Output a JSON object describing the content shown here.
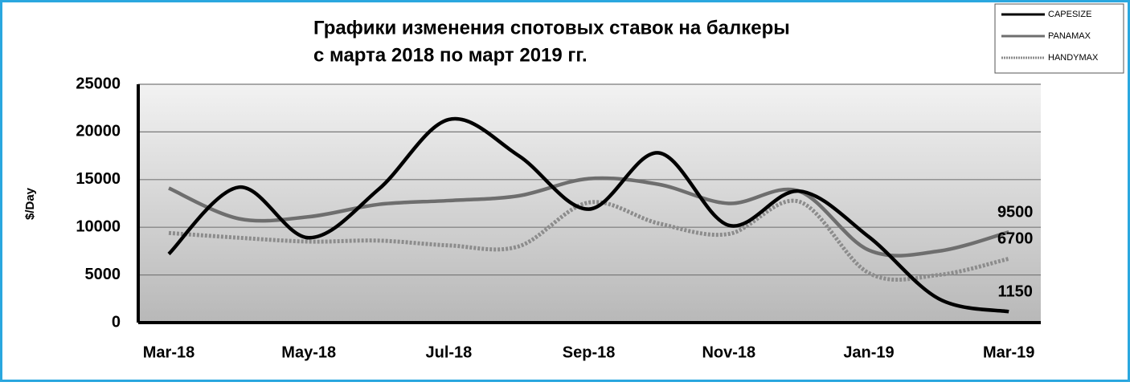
{
  "chart_data": {
    "type": "line",
    "title": [
      "Графики изменения спотовых ставок на балкеры",
      "с марта 2018 по март 2019 гг."
    ],
    "ylabel": "$/Day",
    "categories": [
      "Mar-18",
      null,
      "May-18",
      null,
      "Jul-18",
      null,
      "Sep-18",
      null,
      "Nov-18",
      null,
      "Jan-19",
      null,
      "Mar-19"
    ],
    "series": [
      {
        "name": "CAPESIZE",
        "color": "#000000",
        "values": [
          7200,
          14200,
          8900,
          14000,
          21300,
          17500,
          11900,
          17800,
          10200,
          13800,
          9000,
          2500,
          1150
        ]
      },
      {
        "name": "PANAMAX",
        "color": "#6e6e6e",
        "values": [
          14100,
          10900,
          11100,
          12400,
          12800,
          13300,
          15100,
          14500,
          12500,
          13800,
          7600,
          7500,
          9500
        ]
      },
      {
        "name": "HANDYMAX",
        "color": "#8c8c8c",
        "dashed": true,
        "values": [
          9400,
          8900,
          8500,
          8600,
          8100,
          8000,
          12600,
          10400,
          9300,
          12700,
          5200,
          5000,
          6700
        ]
      }
    ],
    "ylim": [
      0,
      25000
    ],
    "yticks": [
      0,
      5000,
      10000,
      15000,
      20000,
      25000
    ],
    "grid": true,
    "legend": "top-right"
  }
}
